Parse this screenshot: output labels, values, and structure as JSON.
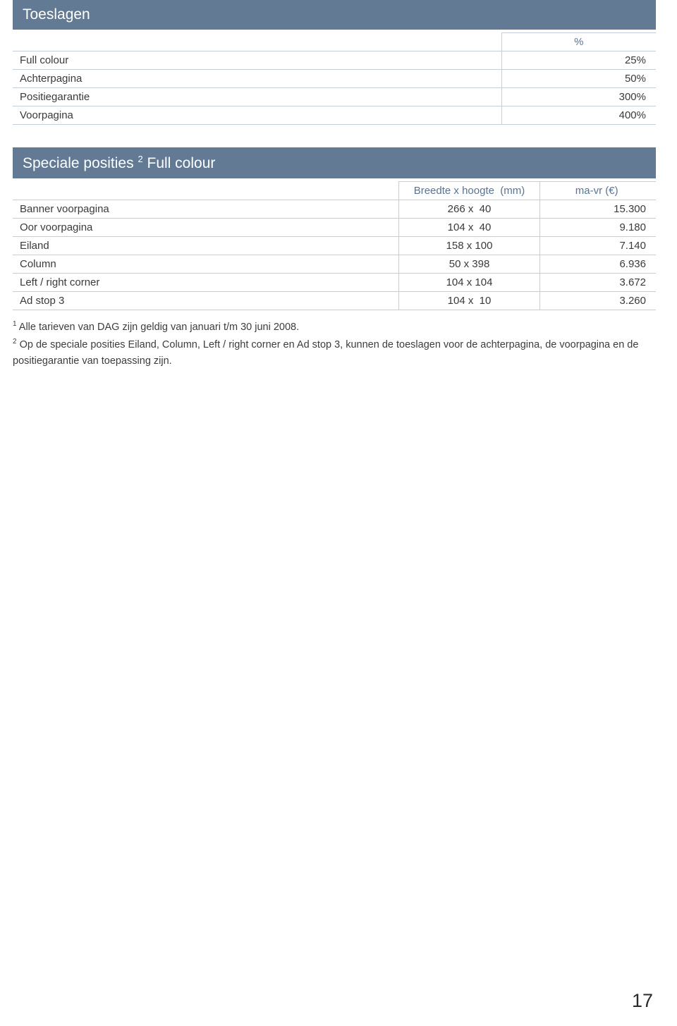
{
  "colors": {
    "header_bg": "#637a95",
    "header_text": "#ffffff",
    "border": "#c7cdd6",
    "th_text": "#5c7390",
    "body_text": "#3a3a3a"
  },
  "table1": {
    "title": "Toeslagen",
    "header_col2": "%",
    "rows": [
      {
        "label": "Full colour",
        "value": "25%"
      },
      {
        "label": "Achterpagina",
        "value": "50%"
      },
      {
        "label": "Positiegarantie",
        "value": "300%"
      },
      {
        "label": "Voorpagina",
        "value": "400%"
      }
    ]
  },
  "table2": {
    "title_pre": "Speciale posities ",
    "title_sup": "2",
    "title_post": " Full colour",
    "header_col2": "Breedte x hoogte  (mm)",
    "header_col3": "ma-vr (€)",
    "rows": [
      {
        "label": "Banner voorpagina",
        "dim": "266 x  40",
        "price": "15.300"
      },
      {
        "label": "Oor voorpagina",
        "dim": "104 x  40",
        "price": "9.180"
      },
      {
        "label": "Eiland",
        "dim": "158 x 100",
        "price": "7.140"
      },
      {
        "label": "Column",
        "dim": "50 x 398",
        "price": "6.936"
      },
      {
        "label": "Left / right corner",
        "dim": "104 x 104",
        "price": "3.672"
      },
      {
        "label": "Ad stop 3",
        "dim": "104 x  10",
        "price": "3.260"
      }
    ]
  },
  "footnotes": {
    "line1_sup": "1",
    "line1": " Alle tarieven van DAG zijn geldig van januari t/m 30 juni 2008.",
    "line2_sup": "2",
    "line2": " Op de speciale posities Eiland, Column, Left / right corner en Ad stop 3, kunnen de toeslagen voor de achterpagina, de voorpagina en de positie­garantie van toepassing zijn."
  },
  "page_number": "17"
}
